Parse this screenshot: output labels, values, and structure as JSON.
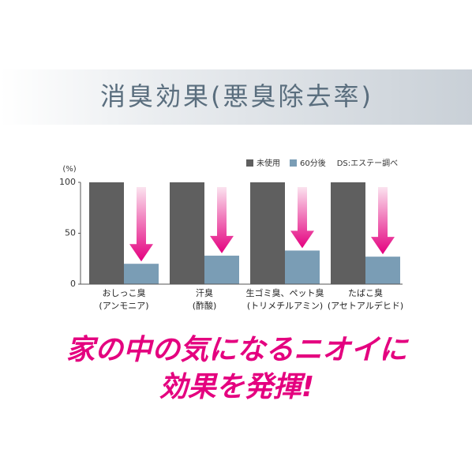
{
  "chart_data": {
    "type": "bar",
    "title": "消臭効果(悪臭除去率)",
    "y_label": "(%)",
    "annotation": "DS:エステー調べ",
    "categories": [
      "おしっこ臭\n(アンモニア)",
      "汗臭\n(酢酸)",
      "生ゴミ臭、ペット臭\n(トリメチルアミン)",
      "たばこ臭\n(アセトアルデヒド)"
    ],
    "series": [
      {
        "name": "未使用",
        "color": "#5f5f5f",
        "values": [
          100,
          100,
          100,
          100
        ]
      },
      {
        "name": "60分後",
        "color": "#7a9db5",
        "values": [
          20,
          28,
          33,
          27
        ]
      }
    ],
    "ylim": [
      0,
      100
    ],
    "yticks": [
      0,
      50,
      100
    ],
    "grid": false,
    "legend": "top-right",
    "tagline": [
      "家の中の気になるニオイに",
      "効果を発揮!"
    ]
  }
}
